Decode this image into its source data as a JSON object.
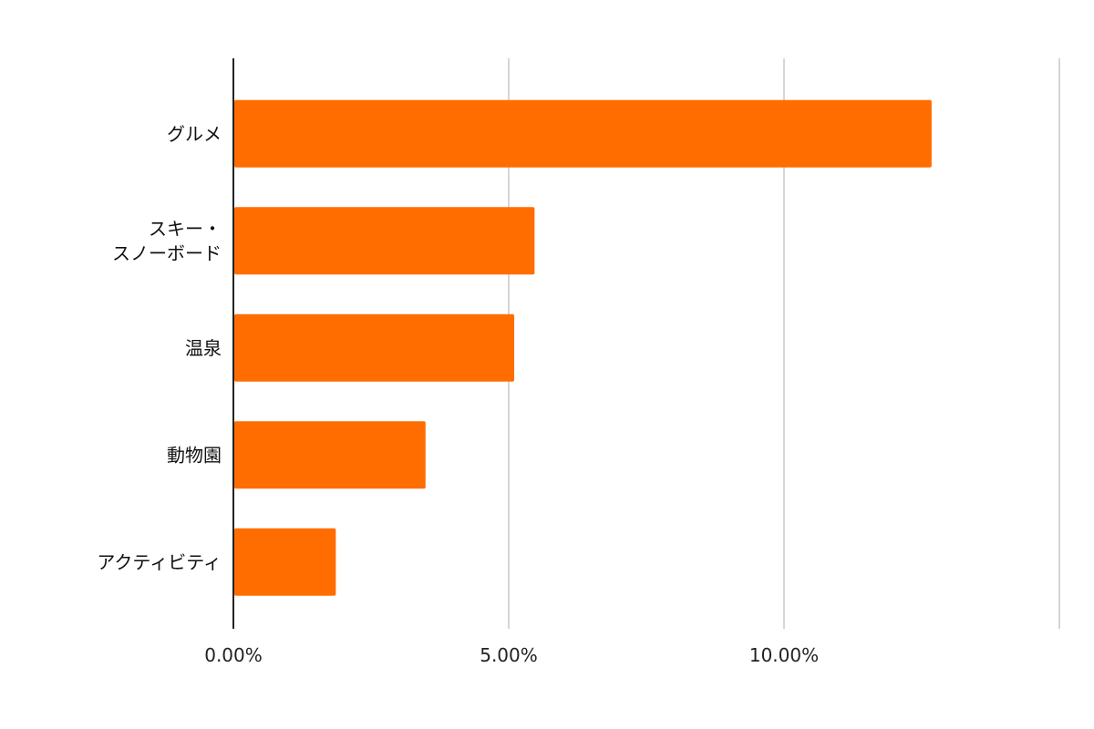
{
  "chart_data": {
    "type": "bar",
    "orientation": "horizontal",
    "categories": [
      "グルメ",
      "スキー・\nスノーボード",
      "温泉",
      "動物園",
      "アクティビティ"
    ],
    "values": [
      12.68,
      5.47,
      5.1,
      3.49,
      1.86
    ],
    "title": "",
    "xlabel": "",
    "ylabel": "",
    "xlim": [
      0,
      15
    ],
    "xticks": [
      0,
      5,
      10,
      15
    ],
    "xtick_labels": [
      "0.00%",
      "5.00%",
      "10.00%",
      ""
    ],
    "grid": "vertical",
    "legend": "none",
    "bar_color": "#ff6d00"
  }
}
